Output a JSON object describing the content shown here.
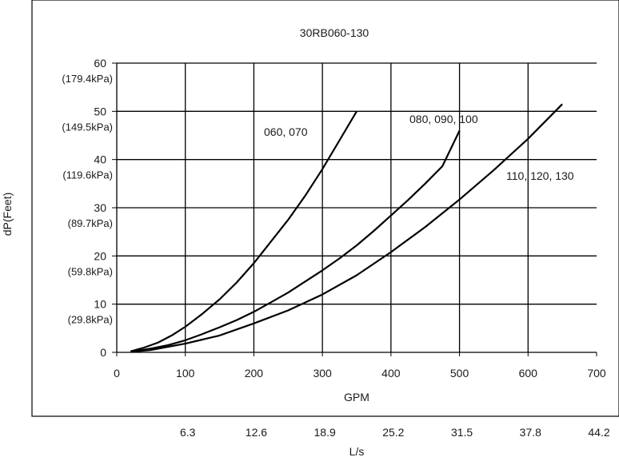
{
  "chart_data": {
    "type": "line",
    "title": "30RB060-130",
    "xlabel": "GPM",
    "ylabel": "dP(Feet)",
    "xlim": [
      0,
      700
    ],
    "ylim": [
      0,
      60
    ],
    "grid": true,
    "x_ticks": [
      "0",
      "100",
      "200",
      "300",
      "400",
      "500",
      "600",
      "700"
    ],
    "y_ticks": [
      {
        "value": 0,
        "label": "0",
        "sublabel": ""
      },
      {
        "value": 10,
        "label": "10",
        "sublabel": "(29.8kPa)"
      },
      {
        "value": 20,
        "label": "20",
        "sublabel": "(59.8kPa)"
      },
      {
        "value": 30,
        "label": "30",
        "sublabel": "(89.7kPa)"
      },
      {
        "value": 40,
        "label": "40",
        "sublabel": "(119.6kPa)"
      },
      {
        "value": 50,
        "label": "50",
        "sublabel": "(149.5kPa)"
      },
      {
        "value": 60,
        "label": "60",
        "sublabel": "(179.4kPa)"
      }
    ],
    "secondary_xlabel": "L/s",
    "secondary_x_ticks": [
      "6.3",
      "12.6",
      "18.9",
      "25.2",
      "31.5",
      "37.8",
      "44.2"
    ],
    "series": [
      {
        "name": "060, 070",
        "x": [
          20,
          40,
          60,
          80,
          100,
          125,
          150,
          175,
          200,
          225,
          250,
          275,
          300,
          325,
          350
        ],
        "y": [
          0.2,
          1.0,
          2.0,
          3.5,
          5.3,
          8.0,
          11.0,
          14.5,
          18.5,
          23.0,
          27.5,
          32.5,
          38.0,
          44.0,
          50.0
        ]
      },
      {
        "name": "080, 090, 100",
        "x": [
          20,
          50,
          75,
          100,
          125,
          150,
          175,
          200,
          225,
          250,
          275,
          300,
          325,
          350,
          375,
          400,
          425,
          450,
          475,
          500
        ],
        "y": [
          0.1,
          0.8,
          1.5,
          2.5,
          3.8,
          5.2,
          6.7,
          8.4,
          10.4,
          12.4,
          14.7,
          17.0,
          19.5,
          22.2,
          25.2,
          28.4,
          31.6,
          35.0,
          38.6,
          46.0
        ]
      },
      {
        "name": "110, 120, 130",
        "x": [
          20,
          50,
          100,
          150,
          200,
          250,
          300,
          350,
          400,
          450,
          500,
          550,
          600,
          650
        ],
        "y": [
          0.1,
          0.5,
          1.8,
          3.5,
          6.0,
          8.7,
          12.0,
          16.0,
          20.8,
          26.0,
          31.7,
          37.8,
          44.3,
          51.5
        ]
      }
    ]
  }
}
